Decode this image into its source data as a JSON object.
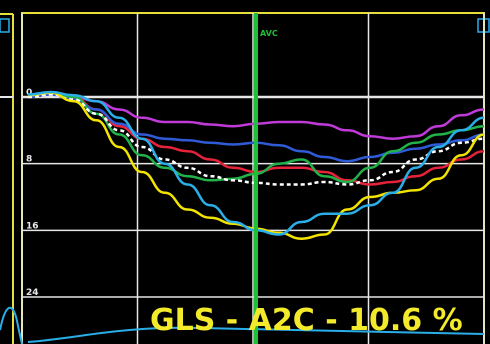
{
  "chart_data": {
    "type": "line",
    "title": "",
    "xlabel": "",
    "ylabel": "",
    "ylim": [
      -24,
      6
    ],
    "y_ticks": [
      {
        "value": 0,
        "label": "0"
      },
      {
        "value": -8,
        "label": "8"
      },
      {
        "value": -16,
        "label": "16"
      },
      {
        "value": -24,
        "label": "24"
      }
    ],
    "x": [
      0,
      5,
      10,
      15,
      20,
      25,
      30,
      35,
      40,
      45,
      50,
      55,
      60,
      65,
      70,
      75,
      80,
      85,
      90,
      95,
      100
    ],
    "grid": true,
    "legend": "none",
    "avc": {
      "label": "AVC",
      "x": 50,
      "color": "#1fbf3a"
    },
    "series": [
      {
        "color": "#c03ad8",
        "dashed": false,
        "values": [
          0,
          0.3,
          0,
          -0.5,
          -1.5,
          -2.5,
          -3,
          -3,
          -3.3,
          -3.5,
          -3.2,
          -3,
          -3,
          -3.3,
          -4,
          -4.7,
          -5,
          -4.7,
          -3.5,
          -2.2,
          -1.5
        ]
      },
      {
        "color": "#e6233b",
        "dashed": false,
        "values": [
          0.2,
          0.5,
          0,
          -1.5,
          -3.5,
          -5,
          -6,
          -6.5,
          -7.5,
          -8.5,
          -9,
          -8.5,
          -8.5,
          -9,
          -10,
          -10.5,
          -10.2,
          -9.5,
          -8.5,
          -7.5,
          -6.5
        ]
      },
      {
        "color": "#2f5bd6",
        "dashed": false,
        "values": [
          0,
          0.3,
          -0.3,
          -1.5,
          -3.2,
          -4.5,
          -5,
          -5.2,
          -5.5,
          -5.7,
          -5.5,
          -5.8,
          -6.5,
          -7.2,
          -7.7,
          -7.2,
          -6.7,
          -6.2,
          -5.7,
          -5.2,
          -4.5
        ]
      },
      {
        "color": "#21b24a",
        "dashed": false,
        "values": [
          0.2,
          0.5,
          0,
          -2,
          -4.5,
          -7,
          -8.5,
          -9.5,
          -10,
          -9.8,
          -9.2,
          -8,
          -7.5,
          -9.5,
          -10.2,
          -8.5,
          -6.5,
          -5.5,
          -4.5,
          -4,
          -3.5
        ]
      },
      {
        "color": "#ffffff",
        "dashed": true,
        "values": [
          0,
          0.3,
          -0.3,
          -2,
          -4,
          -6,
          -7.5,
          -8.5,
          -9.5,
          -10,
          -10.3,
          -10.5,
          -10.5,
          -10.2,
          -10.5,
          -10,
          -9,
          -7.5,
          -6.5,
          -5.5,
          -5
        ]
      },
      {
        "color": "#f2e300",
        "dashed": false,
        "values": [
          0.2,
          0.5,
          -0.5,
          -2.8,
          -6,
          -9,
          -11.5,
          -13.5,
          -14.5,
          -15.2,
          -15.8,
          -16.3,
          -17,
          -16.5,
          -13.5,
          -12,
          -11.5,
          -11.2,
          -9.8,
          -7,
          -4.5
        ]
      },
      {
        "color": "#2aaee8",
        "dashed": false,
        "values": [
          0.3,
          0.6,
          0.2,
          -0.5,
          -2.5,
          -5,
          -8,
          -10.5,
          -13,
          -15,
          -16,
          -16.5,
          -15,
          -14,
          -14,
          -13,
          -11.5,
          -8.5,
          -6,
          -4,
          -2.5
        ]
      }
    ],
    "annotations": [
      {
        "text": "GLS - A2C - 10.6 %"
      }
    ]
  },
  "icons": {
    "left_marker": "bracket-marker-icon",
    "right_marker": "bracket-marker-icon"
  },
  "colors": {
    "frame": "#e4df3a",
    "grid": "#e6e6e6",
    "background": "#000000"
  }
}
